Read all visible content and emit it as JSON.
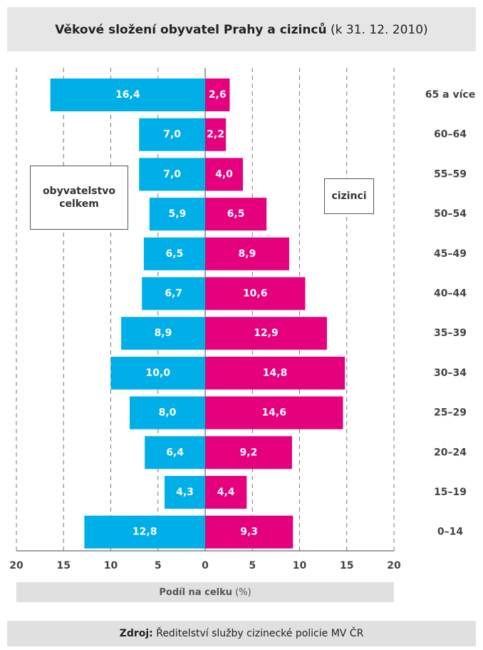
{
  "chart_data": {
    "type": "pyramid",
    "title": "Věkové složení obyvatel Prahy a cizinců",
    "subtitle": "(k 31. 12. 2010)",
    "x_label": "Podíl na celku",
    "x_label_unit": "(%)",
    "source_label": "Zdroj:",
    "source": "Ředitelství služby cizinecké policie MV ČR",
    "categories": [
      "65 a více",
      "60–64",
      "55–59",
      "50–54",
      "45–49",
      "40–44",
      "35–39",
      "30–34",
      "25–29",
      "20–24",
      "15–19",
      "0–14"
    ],
    "series": [
      {
        "name": "obyvatelstvo celkem",
        "color": "#00aee8",
        "values": [
          -16.4,
          -7.0,
          -7.0,
          -5.9,
          -6.5,
          -6.7,
          -8.9,
          -10.0,
          -8.0,
          -6.4,
          -4.3,
          -12.8
        ],
        "value_labels": [
          "16,4",
          "7,0",
          "7,0",
          "5,9",
          "6,5",
          "6,7",
          "8,9",
          "10,0",
          "8,0",
          "6,4",
          "4,3",
          "12,8"
        ]
      },
      {
        "name": "cizinci",
        "color": "#e5007d",
        "values": [
          2.6,
          2.2,
          4.0,
          6.5,
          8.9,
          10.6,
          12.9,
          14.8,
          14.6,
          9.2,
          4.4,
          9.3
        ],
        "value_labels": [
          "2,6",
          "2,2",
          "4,0",
          "6,5",
          "8,9",
          "10,6",
          "12,9",
          "14,8",
          "14,6",
          "9,2",
          "4,4",
          "9,3"
        ]
      }
    ],
    "xlim": [
      -20,
      20
    ],
    "xticks": [
      {
        "value": -20,
        "label": "20"
      },
      {
        "value": -15,
        "label": "15"
      },
      {
        "value": -10,
        "label": "10"
      },
      {
        "value": -5,
        "label": "5"
      },
      0,
      5,
      10,
      15,
      20
    ],
    "grid": true
  }
}
